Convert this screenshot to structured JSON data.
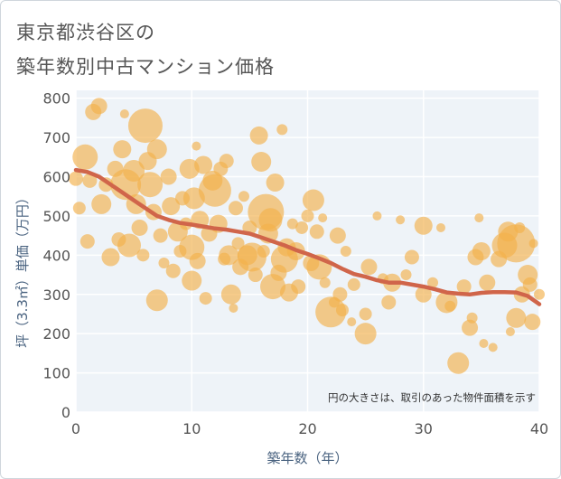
{
  "title_line1": "東京都渋谷区の",
  "title_line2": "築年数別中古マンション価格",
  "colors": {
    "bubble": "#f2b04b",
    "trend": "#d0654a",
    "plot_bg": "#eef3f8",
    "grid": "#ffffff",
    "axis_text": "#4a6380"
  },
  "chart_data": {
    "type": "scatter",
    "title": "東京都渋谷区の 築年数別中古マンション価格",
    "xlabel": "築年数（年）",
    "ylabel": "坪（3.3㎡）単価（万円）",
    "xlim": [
      0,
      40
    ],
    "ylim": [
      0,
      820
    ],
    "x_ticks": [
      "0",
      "10",
      "20",
      "30",
      "40"
    ],
    "y_ticks": [
      "0",
      "100",
      "200",
      "300",
      "400",
      "500",
      "600",
      "700",
      "800"
    ],
    "grid": true,
    "note": "円の大きさは、取引のあった物件面積を示す",
    "trend_line": {
      "x": [
        0,
        1,
        2,
        3,
        4,
        5,
        6,
        7,
        8,
        9,
        10,
        11,
        12,
        13,
        14,
        15,
        16,
        17,
        18,
        19,
        20,
        21,
        22,
        23,
        24,
        25,
        26,
        27,
        28,
        29,
        30,
        31,
        32,
        33,
        34,
        35,
        36,
        37,
        38,
        39,
        40
      ],
      "y": [
        617,
        612,
        600,
        580,
        560,
        540,
        520,
        500,
        490,
        482,
        478,
        473,
        468,
        465,
        460,
        455,
        445,
        435,
        425,
        413,
        403,
        392,
        380,
        365,
        352,
        345,
        336,
        330,
        330,
        325,
        320,
        313,
        305,
        302,
        300,
        304,
        306,
        306,
        305,
        296,
        275
      ]
    },
    "points": [
      {
        "x": 0,
        "y": 595,
        "s": 8
      },
      {
        "x": 0.3,
        "y": 520,
        "s": 7
      },
      {
        "x": 0.8,
        "y": 650,
        "s": 14
      },
      {
        "x": 1,
        "y": 435,
        "s": 8
      },
      {
        "x": 1.2,
        "y": 590,
        "s": 8
      },
      {
        "x": 1.5,
        "y": 765,
        "s": 9
      },
      {
        "x": 2,
        "y": 780,
        "s": 9
      },
      {
        "x": 2.2,
        "y": 530,
        "s": 11
      },
      {
        "x": 2.6,
        "y": 580,
        "s": 8
      },
      {
        "x": 3,
        "y": 395,
        "s": 10
      },
      {
        "x": 3.4,
        "y": 620,
        "s": 9
      },
      {
        "x": 3.7,
        "y": 440,
        "s": 8
      },
      {
        "x": 4,
        "y": 670,
        "s": 10
      },
      {
        "x": 4.2,
        "y": 760,
        "s": 5
      },
      {
        "x": 4.3,
        "y": 580,
        "s": 17
      },
      {
        "x": 4.6,
        "y": 425,
        "s": 13
      },
      {
        "x": 5,
        "y": 615,
        "s": 12
      },
      {
        "x": 5.2,
        "y": 530,
        "s": 11
      },
      {
        "x": 5.5,
        "y": 470,
        "s": 9
      },
      {
        "x": 5.8,
        "y": 400,
        "s": 7
      },
      {
        "x": 6,
        "y": 730,
        "s": 19
      },
      {
        "x": 6.2,
        "y": 640,
        "s": 10
      },
      {
        "x": 6.4,
        "y": 580,
        "s": 14
      },
      {
        "x": 6.7,
        "y": 510,
        "s": 9
      },
      {
        "x": 7,
        "y": 670,
        "s": 11
      },
      {
        "x": 7,
        "y": 285,
        "s": 12
      },
      {
        "x": 7.3,
        "y": 450,
        "s": 8
      },
      {
        "x": 7.6,
        "y": 380,
        "s": 6
      },
      {
        "x": 8,
        "y": 600,
        "s": 9
      },
      {
        "x": 8.2,
        "y": 525,
        "s": 10
      },
      {
        "x": 8.4,
        "y": 360,
        "s": 8
      },
      {
        "x": 8.8,
        "y": 460,
        "s": 11
      },
      {
        "x": 9,
        "y": 410,
        "s": 7
      },
      {
        "x": 9.2,
        "y": 545,
        "s": 8
      },
      {
        "x": 9.5,
        "y": 480,
        "s": 7
      },
      {
        "x": 9.8,
        "y": 620,
        "s": 11
      },
      {
        "x": 10,
        "y": 420,
        "s": 14
      },
      {
        "x": 10,
        "y": 335,
        "s": 11
      },
      {
        "x": 10.2,
        "y": 545,
        "s": 12
      },
      {
        "x": 10.4,
        "y": 678,
        "s": 5
      },
      {
        "x": 10.5,
        "y": 385,
        "s": 9
      },
      {
        "x": 10.7,
        "y": 490,
        "s": 10
      },
      {
        "x": 11,
        "y": 630,
        "s": 10
      },
      {
        "x": 11.2,
        "y": 290,
        "s": 7
      },
      {
        "x": 11.5,
        "y": 455,
        "s": 9
      },
      {
        "x": 11.8,
        "y": 590,
        "s": 11
      },
      {
        "x": 12,
        "y": 565,
        "s": 18
      },
      {
        "x": 12.3,
        "y": 480,
        "s": 10
      },
      {
        "x": 12.5,
        "y": 620,
        "s": 8
      },
      {
        "x": 12.8,
        "y": 390,
        "s": 7
      },
      {
        "x": 13,
        "y": 640,
        "s": 8
      },
      {
        "x": 13.2,
        "y": 400,
        "s": 11
      },
      {
        "x": 13.4,
        "y": 300,
        "s": 11
      },
      {
        "x": 13.6,
        "y": 265,
        "s": 5
      },
      {
        "x": 13.8,
        "y": 520,
        "s": 8
      },
      {
        "x": 14,
        "y": 430,
        "s": 7
      },
      {
        "x": 14.2,
        "y": 370,
        "s": 9
      },
      {
        "x": 14.5,
        "y": 550,
        "s": 6
      },
      {
        "x": 14.8,
        "y": 400,
        "s": 11
      },
      {
        "x": 15,
        "y": 470,
        "s": 8
      },
      {
        "x": 15.2,
        "y": 395,
        "s": 16
      },
      {
        "x": 15.5,
        "y": 350,
        "s": 8
      },
      {
        "x": 15.8,
        "y": 705,
        "s": 10
      },
      {
        "x": 16,
        "y": 638,
        "s": 11
      },
      {
        "x": 16.2,
        "y": 410,
        "s": 7
      },
      {
        "x": 16.4,
        "y": 510,
        "s": 20
      },
      {
        "x": 16.6,
        "y": 455,
        "s": 11
      },
      {
        "x": 16.8,
        "y": 490,
        "s": 13
      },
      {
        "x": 17,
        "y": 320,
        "s": 14
      },
      {
        "x": 17.2,
        "y": 585,
        "s": 10
      },
      {
        "x": 17.5,
        "y": 355,
        "s": 9
      },
      {
        "x": 17.8,
        "y": 720,
        "s": 6
      },
      {
        "x": 18,
        "y": 390,
        "s": 15
      },
      {
        "x": 18.2,
        "y": 420,
        "s": 10
      },
      {
        "x": 18.4,
        "y": 305,
        "s": 10
      },
      {
        "x": 18.7,
        "y": 480,
        "s": 6
      },
      {
        "x": 19,
        "y": 410,
        "s": 10
      },
      {
        "x": 19.2,
        "y": 320,
        "s": 8
      },
      {
        "x": 19.5,
        "y": 470,
        "s": 7
      },
      {
        "x": 20,
        "y": 500,
        "s": 7
      },
      {
        "x": 20.3,
        "y": 380,
        "s": 9
      },
      {
        "x": 20.5,
        "y": 540,
        "s": 12
      },
      {
        "x": 20.8,
        "y": 460,
        "s": 8
      },
      {
        "x": 21,
        "y": 370,
        "s": 14
      },
      {
        "x": 21.3,
        "y": 495,
        "s": 5
      },
      {
        "x": 21.5,
        "y": 330,
        "s": 6
      },
      {
        "x": 22,
        "y": 255,
        "s": 17
      },
      {
        "x": 22.3,
        "y": 280,
        "s": 6
      },
      {
        "x": 22.6,
        "y": 450,
        "s": 9
      },
      {
        "x": 22.8,
        "y": 300,
        "s": 8
      },
      {
        "x": 23,
        "y": 260,
        "s": 7
      },
      {
        "x": 23.3,
        "y": 410,
        "s": 6
      },
      {
        "x": 23.8,
        "y": 230,
        "s": 5
      },
      {
        "x": 24,
        "y": 325,
        "s": 7
      },
      {
        "x": 25,
        "y": 200,
        "s": 12
      },
      {
        "x": 25,
        "y": 250,
        "s": 7
      },
      {
        "x": 25.3,
        "y": 370,
        "s": 9
      },
      {
        "x": 26,
        "y": 500,
        "s": 5
      },
      {
        "x": 26.5,
        "y": 340,
        "s": 6
      },
      {
        "x": 27,
        "y": 280,
        "s": 8
      },
      {
        "x": 27.3,
        "y": 330,
        "s": 10
      },
      {
        "x": 28,
        "y": 490,
        "s": 5
      },
      {
        "x": 28.5,
        "y": 350,
        "s": 6
      },
      {
        "x": 29,
        "y": 395,
        "s": 8
      },
      {
        "x": 30,
        "y": 475,
        "s": 10
      },
      {
        "x": 30,
        "y": 300,
        "s": 9
      },
      {
        "x": 30.8,
        "y": 330,
        "s": 6
      },
      {
        "x": 31.5,
        "y": 470,
        "s": 5
      },
      {
        "x": 32,
        "y": 280,
        "s": 12
      },
      {
        "x": 32.3,
        "y": 270,
        "s": 6
      },
      {
        "x": 33,
        "y": 125,
        "s": 12
      },
      {
        "x": 33.5,
        "y": 320,
        "s": 8
      },
      {
        "x": 34,
        "y": 215,
        "s": 9
      },
      {
        "x": 34.2,
        "y": 240,
        "s": 6
      },
      {
        "x": 34.5,
        "y": 395,
        "s": 9
      },
      {
        "x": 34.8,
        "y": 495,
        "s": 5
      },
      {
        "x": 35,
        "y": 410,
        "s": 10
      },
      {
        "x": 35.2,
        "y": 175,
        "s": 5
      },
      {
        "x": 35.5,
        "y": 330,
        "s": 9
      },
      {
        "x": 36,
        "y": 165,
        "s": 5
      },
      {
        "x": 36.5,
        "y": 390,
        "s": 9
      },
      {
        "x": 37,
        "y": 425,
        "s": 14
      },
      {
        "x": 37.3,
        "y": 460,
        "s": 11
      },
      {
        "x": 37.5,
        "y": 205,
        "s": 5
      },
      {
        "x": 38,
        "y": 430,
        "s": 21
      },
      {
        "x": 38,
        "y": 240,
        "s": 11
      },
      {
        "x": 38.3,
        "y": 470,
        "s": 6
      },
      {
        "x": 38.5,
        "y": 300,
        "s": 9
      },
      {
        "x": 39,
        "y": 350,
        "s": 11
      },
      {
        "x": 39.2,
        "y": 325,
        "s": 8
      },
      {
        "x": 39.4,
        "y": 230,
        "s": 9
      },
      {
        "x": 39.5,
        "y": 430,
        "s": 5
      },
      {
        "x": 40,
        "y": 300,
        "s": 6
      }
    ]
  }
}
